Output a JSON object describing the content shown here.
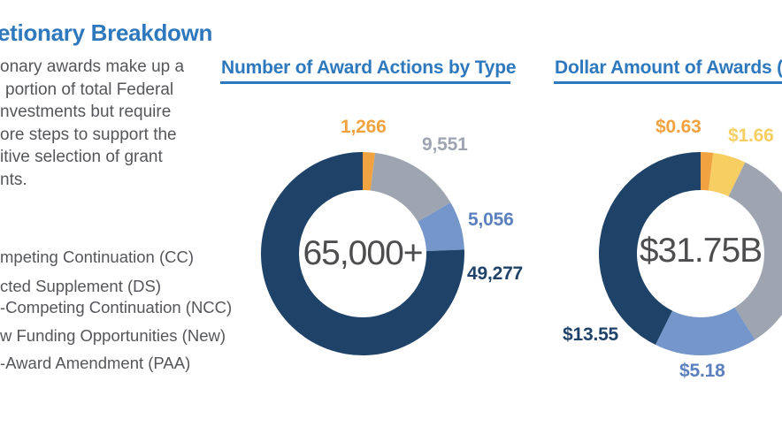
{
  "colors": {
    "brand_blue": "#2E78BE",
    "navy": "#1F4268",
    "gray": "#9EA5B1",
    "light_blue": "#7596CA",
    "blue_label": "#5B80BD",
    "orange": "#F0A340",
    "yellow": "#F6CE62",
    "center_text": "#4D4D4F",
    "body_text": "#55565A",
    "background": "#FFFFFF"
  },
  "intro": {
    "title": "etionary Breakdown",
    "paragraph_lines": [
      "onary awards make up a",
      "portion of total Federal",
      "nvestments but require",
      "ore steps to support the",
      "itive selection of grant",
      "nts."
    ],
    "legend_items": [
      "mpeting Continuation (CC)",
      "cted Supplement (DS)",
      "-Competing Continuation (NCC)",
      "w Funding Opportunities (New)",
      "-Award Amendment (PAA)"
    ]
  },
  "chart_data": [
    {
      "type": "pie",
      "subtype": "donut",
      "title": "Number of Award Actions by Type",
      "center_label": "65,000+",
      "start_angle_deg": 0,
      "direction": "clockwise",
      "legend_position": "left-panel (cut off)",
      "segments": [
        {
          "label": "1,266",
          "value": 1266,
          "color": "#F0A340"
        },
        {
          "label": "9,551",
          "value": 9551,
          "color": "#9EA5B1"
        },
        {
          "label": "5,056",
          "value": 5056,
          "color": "#7596CA"
        },
        {
          "label": "49,277",
          "value": 49277,
          "color": "#1F4268"
        }
      ]
    },
    {
      "type": "pie",
      "subtype": "donut",
      "title": "Dollar Amount of Awards (i",
      "center_label": "$31.75B",
      "start_angle_deg": 0,
      "direction": "clockwise",
      "legend_position": "left-panel (cut off)",
      "segments": [
        {
          "label": "$0.63",
          "value": 0.63,
          "color": "#F0A340"
        },
        {
          "label": "$1.66",
          "value": 1.66,
          "color": "#F6CE62"
        },
        {
          "label": "",
          "value": 10.73,
          "color": "#9EA5B1"
        },
        {
          "label": "$5.18",
          "value": 5.18,
          "color": "#7596CA"
        },
        {
          "label": "$13.55",
          "value": 13.55,
          "color": "#1F4268"
        }
      ]
    }
  ]
}
